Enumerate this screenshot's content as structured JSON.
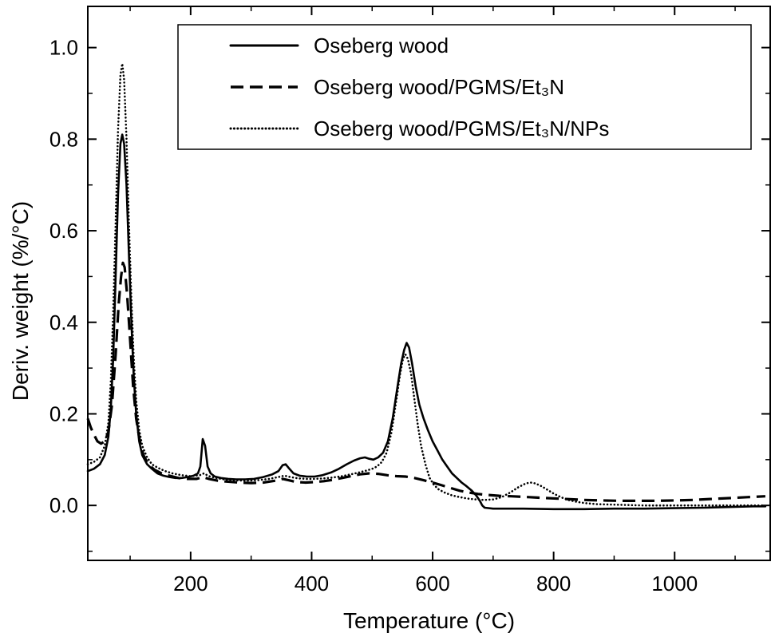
{
  "figure": {
    "background": "#ffffff",
    "line_color": "#000000"
  },
  "chart_data": {
    "type": "line",
    "title": "",
    "xlabel": "Temperature (°C)",
    "ylabel": "Deriv. weight (%/°C)",
    "xlim": [
      30,
      1158
    ],
    "ylim": [
      -0.12,
      1.09
    ],
    "grid": false,
    "legend_position": "top-center-inside",
    "xticks": {
      "values": [
        200,
        400,
        600,
        800,
        1000
      ],
      "labels": [
        "200",
        "400",
        "600",
        "800",
        "1000"
      ],
      "minor": [
        100,
        300,
        500,
        700,
        900,
        1100
      ]
    },
    "yticks": {
      "values": [
        0.0,
        0.2,
        0.4,
        0.6,
        0.8,
        1.0
      ],
      "labels": [
        "0.0",
        "0.2",
        "0.4",
        "0.6",
        "0.8",
        "1.0"
      ],
      "minor": [
        -0.1,
        0.1,
        0.3,
        0.5,
        0.7,
        0.9
      ]
    },
    "series": [
      {
        "name": "Oseberg wood",
        "style": "solid",
        "color": "#000000",
        "points": [
          [
            30,
            0.075
          ],
          [
            40,
            0.08
          ],
          [
            50,
            0.09
          ],
          [
            58,
            0.11
          ],
          [
            64,
            0.15
          ],
          [
            68,
            0.21
          ],
          [
            72,
            0.32
          ],
          [
            76,
            0.5
          ],
          [
            80,
            0.68
          ],
          [
            84,
            0.79
          ],
          [
            87,
            0.81
          ],
          [
            90,
            0.79
          ],
          [
            94,
            0.7
          ],
          [
            98,
            0.55
          ],
          [
            102,
            0.4
          ],
          [
            106,
            0.28
          ],
          [
            110,
            0.2
          ],
          [
            115,
            0.14
          ],
          [
            120,
            0.11
          ],
          [
            128,
            0.09
          ],
          [
            136,
            0.08
          ],
          [
            145,
            0.07
          ],
          [
            155,
            0.065
          ],
          [
            165,
            0.062
          ],
          [
            175,
            0.06
          ],
          [
            185,
            0.06
          ],
          [
            195,
            0.062
          ],
          [
            205,
            0.065
          ],
          [
            212,
            0.07
          ],
          [
            216,
            0.085
          ],
          [
            220,
            0.145
          ],
          [
            224,
            0.13
          ],
          [
            228,
            0.085
          ],
          [
            233,
            0.07
          ],
          [
            240,
            0.063
          ],
          [
            250,
            0.06
          ],
          [
            262,
            0.058
          ],
          [
            275,
            0.057
          ],
          [
            290,
            0.057
          ],
          [
            305,
            0.058
          ],
          [
            320,
            0.062
          ],
          [
            335,
            0.068
          ],
          [
            345,
            0.075
          ],
          [
            352,
            0.088
          ],
          [
            357,
            0.09
          ],
          [
            362,
            0.082
          ],
          [
            370,
            0.07
          ],
          [
            380,
            0.065
          ],
          [
            392,
            0.063
          ],
          [
            405,
            0.063
          ],
          [
            418,
            0.066
          ],
          [
            432,
            0.072
          ],
          [
            445,
            0.08
          ],
          [
            458,
            0.09
          ],
          [
            470,
            0.098
          ],
          [
            480,
            0.103
          ],
          [
            488,
            0.105
          ],
          [
            495,
            0.102
          ],
          [
            502,
            0.1
          ],
          [
            510,
            0.105
          ],
          [
            518,
            0.115
          ],
          [
            526,
            0.14
          ],
          [
            534,
            0.19
          ],
          [
            542,
            0.26
          ],
          [
            548,
            0.31
          ],
          [
            553,
            0.34
          ],
          [
            557,
            0.355
          ],
          [
            561,
            0.345
          ],
          [
            566,
            0.31
          ],
          [
            572,
            0.26
          ],
          [
            578,
            0.22
          ],
          [
            585,
            0.19
          ],
          [
            592,
            0.165
          ],
          [
            600,
            0.14
          ],
          [
            608,
            0.12
          ],
          [
            616,
            0.1
          ],
          [
            624,
            0.085
          ],
          [
            632,
            0.07
          ],
          [
            640,
            0.06
          ],
          [
            648,
            0.05
          ],
          [
            656,
            0.042
          ],
          [
            664,
            0.033
          ],
          [
            672,
            0.022
          ],
          [
            678,
            0.01
          ],
          [
            682,
            0.0
          ],
          [
            686,
            -0.005
          ],
          [
            700,
            -0.007
          ],
          [
            720,
            -0.007
          ],
          [
            750,
            -0.007
          ],
          [
            800,
            -0.008
          ],
          [
            850,
            -0.008
          ],
          [
            900,
            -0.007
          ],
          [
            950,
            -0.007
          ],
          [
            1000,
            -0.006
          ],
          [
            1050,
            -0.005
          ],
          [
            1100,
            -0.003
          ],
          [
            1130,
            -0.002
          ],
          [
            1150,
            -0.002
          ]
        ]
      },
      {
        "name": "Oseberg wood/PGMS/Et₃N",
        "style": "dashed",
        "color": "#000000",
        "points": [
          [
            30,
            0.19
          ],
          [
            35,
            0.17
          ],
          [
            40,
            0.155
          ],
          [
            46,
            0.14
          ],
          [
            52,
            0.135
          ],
          [
            58,
            0.14
          ],
          [
            64,
            0.16
          ],
          [
            70,
            0.22
          ],
          [
            76,
            0.33
          ],
          [
            81,
            0.44
          ],
          [
            85,
            0.5
          ],
          [
            88,
            0.53
          ],
          [
            91,
            0.52
          ],
          [
            95,
            0.46
          ],
          [
            100,
            0.36
          ],
          [
            105,
            0.26
          ],
          [
            110,
            0.19
          ],
          [
            116,
            0.14
          ],
          [
            122,
            0.11
          ],
          [
            130,
            0.09
          ],
          [
            140,
            0.078
          ],
          [
            152,
            0.07
          ],
          [
            165,
            0.065
          ],
          [
            180,
            0.06
          ],
          [
            195,
            0.058
          ],
          [
            210,
            0.058
          ],
          [
            220,
            0.062
          ],
          [
            230,
            0.058
          ],
          [
            245,
            0.054
          ],
          [
            260,
            0.052
          ],
          [
            280,
            0.05
          ],
          [
            300,
            0.049
          ],
          [
            320,
            0.05
          ],
          [
            340,
            0.054
          ],
          [
            352,
            0.058
          ],
          [
            362,
            0.055
          ],
          [
            375,
            0.051
          ],
          [
            390,
            0.05
          ],
          [
            405,
            0.051
          ],
          [
            420,
            0.053
          ],
          [
            435,
            0.056
          ],
          [
            450,
            0.06
          ],
          [
            465,
            0.064
          ],
          [
            480,
            0.068
          ],
          [
            495,
            0.07
          ],
          [
            510,
            0.069
          ],
          [
            525,
            0.066
          ],
          [
            540,
            0.064
          ],
          [
            555,
            0.063
          ],
          [
            570,
            0.06
          ],
          [
            585,
            0.055
          ],
          [
            600,
            0.05
          ],
          [
            615,
            0.044
          ],
          [
            630,
            0.038
          ],
          [
            645,
            0.032
          ],
          [
            660,
            0.028
          ],
          [
            675,
            0.025
          ],
          [
            690,
            0.023
          ],
          [
            710,
            0.021
          ],
          [
            730,
            0.02
          ],
          [
            760,
            0.018
          ],
          [
            790,
            0.016
          ],
          [
            820,
            0.014
          ],
          [
            850,
            0.012
          ],
          [
            880,
            0.011
          ],
          [
            910,
            0.01
          ],
          [
            940,
            0.01
          ],
          [
            970,
            0.01
          ],
          [
            1000,
            0.011
          ],
          [
            1030,
            0.012
          ],
          [
            1060,
            0.014
          ],
          [
            1090,
            0.016
          ],
          [
            1120,
            0.018
          ],
          [
            1150,
            0.02
          ]
        ]
      },
      {
        "name": "Oseberg wood/PGMS/Et₃N/NPs",
        "style": "dotted",
        "color": "#000000",
        "points": [
          [
            30,
            0.09
          ],
          [
            40,
            0.095
          ],
          [
            50,
            0.105
          ],
          [
            58,
            0.13
          ],
          [
            64,
            0.18
          ],
          [
            68,
            0.27
          ],
          [
            72,
            0.42
          ],
          [
            76,
            0.62
          ],
          [
            80,
            0.82
          ],
          [
            84,
            0.94
          ],
          [
            87,
            0.965
          ],
          [
            90,
            0.93
          ],
          [
            94,
            0.8
          ],
          [
            98,
            0.62
          ],
          [
            102,
            0.45
          ],
          [
            106,
            0.32
          ],
          [
            110,
            0.23
          ],
          [
            115,
            0.165
          ],
          [
            120,
            0.13
          ],
          [
            128,
            0.105
          ],
          [
            136,
            0.09
          ],
          [
            146,
            0.082
          ],
          [
            158,
            0.075
          ],
          [
            170,
            0.07
          ],
          [
            185,
            0.066
          ],
          [
            200,
            0.064
          ],
          [
            215,
            0.066
          ],
          [
            222,
            0.07
          ],
          [
            230,
            0.064
          ],
          [
            242,
            0.06
          ],
          [
            255,
            0.057
          ],
          [
            270,
            0.055
          ],
          [
            290,
            0.054
          ],
          [
            310,
            0.055
          ],
          [
            330,
            0.058
          ],
          [
            345,
            0.062
          ],
          [
            355,
            0.065
          ],
          [
            365,
            0.062
          ],
          [
            378,
            0.059
          ],
          [
            392,
            0.058
          ],
          [
            406,
            0.058
          ],
          [
            420,
            0.059
          ],
          [
            435,
            0.061
          ],
          [
            450,
            0.064
          ],
          [
            465,
            0.068
          ],
          [
            478,
            0.072
          ],
          [
            490,
            0.076
          ],
          [
            500,
            0.08
          ],
          [
            508,
            0.085
          ],
          [
            516,
            0.095
          ],
          [
            524,
            0.115
          ],
          [
            532,
            0.16
          ],
          [
            540,
            0.23
          ],
          [
            546,
            0.285
          ],
          [
            551,
            0.32
          ],
          [
            555,
            0.33
          ],
          [
            559,
            0.32
          ],
          [
            564,
            0.29
          ],
          [
            569,
            0.24
          ],
          [
            575,
            0.18
          ],
          [
            581,
            0.13
          ],
          [
            588,
            0.09
          ],
          [
            595,
            0.06
          ],
          [
            602,
            0.045
          ],
          [
            610,
            0.035
          ],
          [
            620,
            0.028
          ],
          [
            632,
            0.022
          ],
          [
            645,
            0.018
          ],
          [
            658,
            0.015
          ],
          [
            672,
            0.013
          ],
          [
            686,
            0.012
          ],
          [
            700,
            0.013
          ],
          [
            714,
            0.018
          ],
          [
            728,
            0.028
          ],
          [
            742,
            0.04
          ],
          [
            754,
            0.048
          ],
          [
            762,
            0.05
          ],
          [
            770,
            0.048
          ],
          [
            780,
            0.042
          ],
          [
            790,
            0.034
          ],
          [
            800,
            0.026
          ],
          [
            812,
            0.018
          ],
          [
            824,
            0.012
          ],
          [
            838,
            0.008
          ],
          [
            852,
            0.005
          ],
          [
            870,
            0.003
          ],
          [
            890,
            0.002
          ],
          [
            920,
            0.001
          ],
          [
            950,
            0.0
          ],
          [
            1000,
            0.0
          ],
          [
            1050,
            0.0
          ],
          [
            1100,
            0.0
          ],
          [
            1150,
            0.0
          ]
        ]
      }
    ]
  }
}
